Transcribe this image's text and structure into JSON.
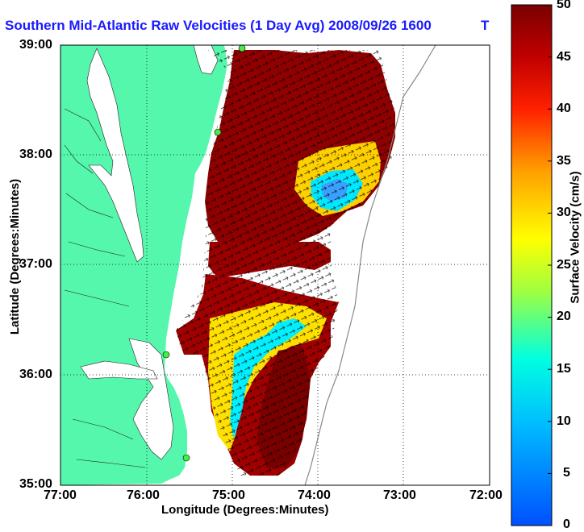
{
  "title": "Southern Mid-Atlantic Raw Velocities (1 Day Avg) 2008/09/26 1600",
  "title_overlap_tail": "T",
  "map": {
    "x_axis_label": "Longitude (Degrees:Minutes)",
    "y_axis_label": "Latitude (Degrees:Minutes)",
    "x_ticks": [
      "77:00",
      "76:00",
      "75:00",
      "74:00",
      "73:00",
      "72:00"
    ],
    "y_ticks": [
      "39:00",
      "38:00",
      "37:00",
      "36:00",
      "35:00"
    ],
    "land_color": "#55f7ac",
    "grid": "dotted"
  },
  "colorbar": {
    "label": "Surface Velocity (cm/s)",
    "ticks": [
      "50",
      "45",
      "40",
      "35",
      "30",
      "25",
      "20",
      "15",
      "10",
      "5",
      "0"
    ],
    "min": 0,
    "max": 50
  },
  "stations": [
    "station-1",
    "station-2",
    "station-3",
    "station-4"
  ]
}
